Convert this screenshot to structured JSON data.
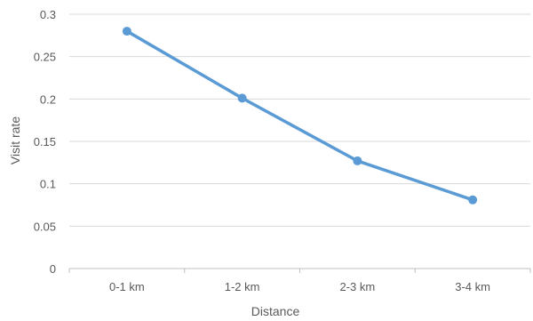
{
  "chart_data": {
    "type": "line",
    "categories": [
      "0-1 km",
      "1-2 km",
      "2-3 km",
      "3-4 km"
    ],
    "series": [
      {
        "values": [
          0.28,
          0.201,
          0.127,
          0.081
        ]
      }
    ],
    "xlabel": "Distance",
    "ylabel": "Visit rate",
    "ylim": [
      0,
      0.3
    ],
    "yticks": [
      "0",
      "0.05",
      "0.1",
      "0.15",
      "0.2",
      "0.25",
      "0.3"
    ],
    "grid": true,
    "legend": "none",
    "colors": {
      "line": "#5b9bd5",
      "grid": "#d9d9d9",
      "axis": "#bfbfbf",
      "text": "#595959"
    }
  }
}
